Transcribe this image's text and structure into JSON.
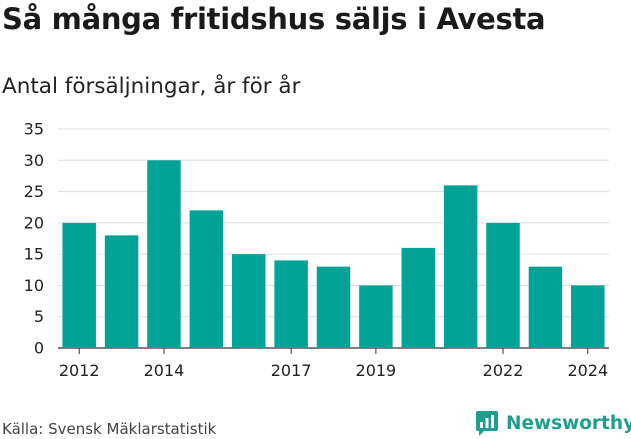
{
  "chart_data": {
    "type": "bar",
    "title": "Så många fritidshus säljs i Avesta",
    "subtitle": "Antal försäljningar, år för år",
    "categories": [
      "2012",
      "2013",
      "2014",
      "2015",
      "2016",
      "2017",
      "2018",
      "2019",
      "2020",
      "2021",
      "2022",
      "2023",
      "2024"
    ],
    "values": [
      20,
      18,
      30,
      22,
      15,
      14,
      13,
      10,
      16,
      26,
      20,
      13,
      10
    ],
    "ylim": [
      0,
      35
    ],
    "yticks": [
      "0",
      "5",
      "10",
      "15",
      "20",
      "25",
      "30",
      "35"
    ],
    "xtick_labels": [
      "2012",
      "2014",
      "2017",
      "2019",
      "2022",
      "2024"
    ],
    "grid": true,
    "bar_color": "#00a396"
  },
  "footer": {
    "source": "Källa: Svensk Mäklarstatistik",
    "brand": "Newsworthy",
    "brand_icon": "newsworthy-logo-icon",
    "brand_color": "#1f9e8d"
  }
}
